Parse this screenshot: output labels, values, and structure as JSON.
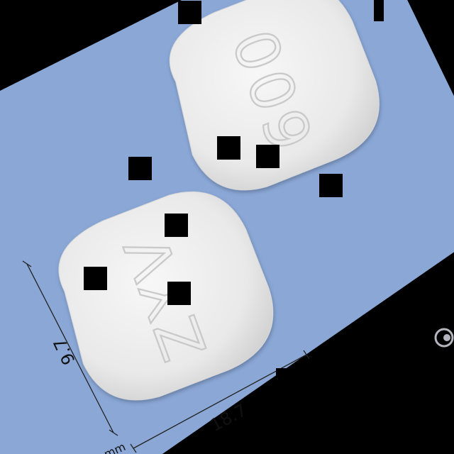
{
  "image": {
    "background_color": "#000000",
    "card_color": "#8aa7d6",
    "pill_color": "#efefef",
    "occluder_color": "#000000"
  },
  "pills": [
    {
      "imprint": "600"
    },
    {
      "imprint": "ZYV"
    }
  ],
  "dimensions": {
    "width": "18.7",
    "height": "9.7",
    "unit": "mm"
  },
  "watermark": {
    "icon": "logo-swirl-icon"
  }
}
